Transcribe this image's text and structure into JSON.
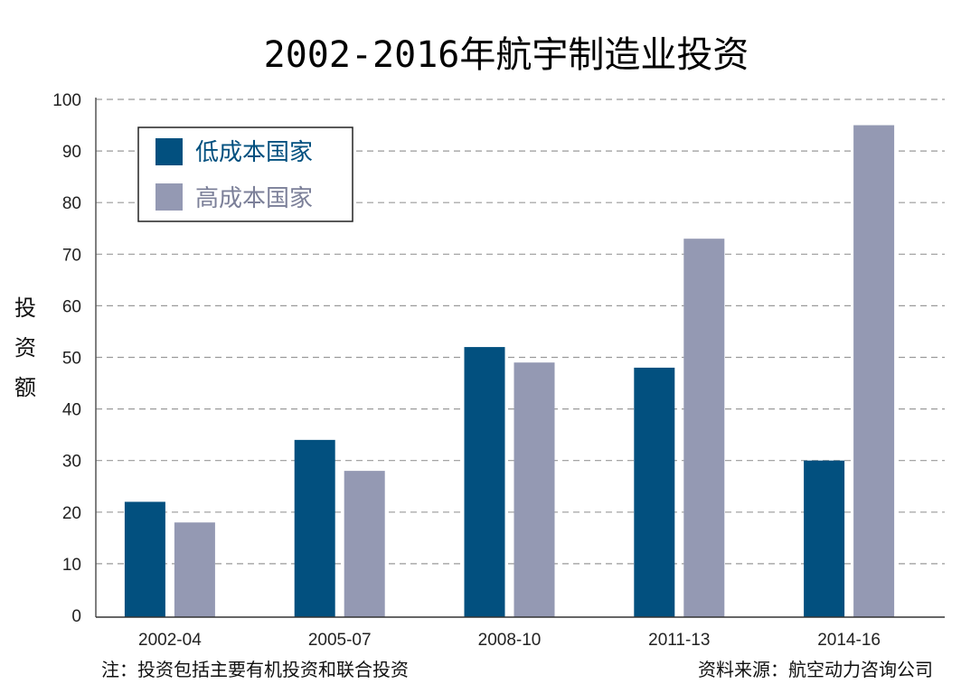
{
  "chart_data": {
    "type": "bar",
    "title": "2002-2016年航宇制造业投资",
    "xlabel": "",
    "ylabel": "投资额",
    "categories": [
      "2002-04",
      "2005-07",
      "2008-10",
      "2011-13",
      "2014-16"
    ],
    "series": [
      {
        "name": "低成本国家",
        "color": "#02507f",
        "values": [
          22,
          34,
          52,
          48,
          30
        ]
      },
      {
        "name": "高成本国家",
        "color": "#9499b3",
        "values": [
          18,
          28,
          49,
          73,
          95
        ]
      }
    ],
    "ylim": [
      0,
      100
    ],
    "yticks": [
      0,
      10,
      20,
      30,
      40,
      50,
      60,
      70,
      80,
      90,
      100
    ],
    "grid": true,
    "legend_position": "top-left"
  },
  "notes": {
    "left": "注：投资包括主要有机投资和联合投资",
    "right": "资料来源：航空动力咨询公司"
  }
}
